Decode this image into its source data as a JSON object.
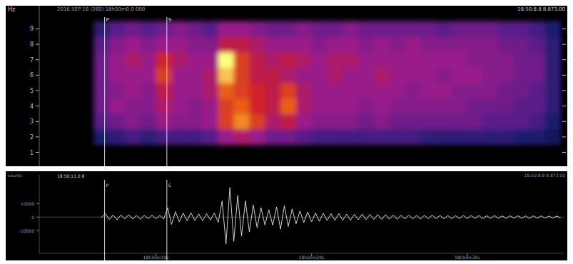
{
  "chart_data": [
    {
      "type": "heatmap",
      "title": "2016 SEP 16 (260) 18h50m0.0 000",
      "subtitle": "18:50:8.8 8.873.00",
      "y_label": "Hz",
      "xlim": [
        2.5,
        36.2
      ],
      "ylim": [
        0.1,
        10.5
      ],
      "yticks": [
        1,
        2,
        3,
        4,
        5,
        6,
        7,
        8,
        9
      ],
      "tick_labels": "y",
      "annotations": [
        {
          "label": "P",
          "x": 6.7
        },
        {
          "label": "S",
          "x": 10.7
        }
      ],
      "x_bins": [
        6,
        7,
        8,
        9,
        10,
        11,
        12,
        13,
        14,
        15,
        16,
        17,
        18,
        19,
        20,
        21,
        22,
        23,
        24,
        25,
        26,
        27,
        28,
        29,
        30,
        31,
        32,
        33,
        34,
        35,
        36
      ],
      "y_bins": [
        1.5,
        2.5,
        3.5,
        4.5,
        5.5,
        6.5,
        7.5,
        8.5,
        9.5
      ],
      "color_range": [
        0,
        1
      ],
      "cells": [
        [
          0.3,
          0.35,
          0.4,
          0.35,
          0.4,
          0.4,
          0.4,
          0.45,
          0.6,
          0.65,
          0.6,
          0.5,
          0.5,
          0.45,
          0.4,
          0.4,
          0.4,
          0.4,
          0.4,
          0.4,
          0.4,
          0.35,
          0.35,
          0.35,
          0.35,
          0.35,
          0.35,
          0.3,
          0.3,
          0.25
        ],
        [
          0.45,
          0.5,
          0.55,
          0.5,
          0.6,
          0.55,
          0.55,
          0.6,
          0.8,
          0.9,
          0.8,
          0.65,
          0.7,
          0.6,
          0.55,
          0.55,
          0.55,
          0.5,
          0.55,
          0.5,
          0.5,
          0.5,
          0.5,
          0.5,
          0.5,
          0.45,
          0.45,
          0.45,
          0.4,
          0.3
        ],
        [
          0.5,
          0.6,
          0.55,
          0.55,
          0.65,
          0.6,
          0.55,
          0.6,
          0.8,
          0.85,
          0.75,
          0.7,
          0.85,
          0.65,
          0.6,
          0.6,
          0.6,
          0.55,
          0.6,
          0.55,
          0.55,
          0.55,
          0.55,
          0.55,
          0.5,
          0.5,
          0.5,
          0.45,
          0.45,
          0.35
        ],
        [
          0.5,
          0.55,
          0.6,
          0.55,
          0.7,
          0.6,
          0.6,
          0.65,
          0.85,
          0.8,
          0.75,
          0.7,
          0.8,
          0.65,
          0.6,
          0.6,
          0.6,
          0.6,
          0.6,
          0.6,
          0.55,
          0.6,
          0.6,
          0.55,
          0.55,
          0.55,
          0.5,
          0.5,
          0.45,
          0.35
        ],
        [
          0.5,
          0.6,
          0.6,
          0.6,
          0.8,
          0.6,
          0.6,
          0.65,
          0.95,
          0.8,
          0.7,
          0.7,
          0.65,
          0.6,
          0.6,
          0.65,
          0.6,
          0.6,
          0.65,
          0.6,
          0.6,
          0.6,
          0.55,
          0.6,
          0.6,
          0.55,
          0.55,
          0.5,
          0.5,
          0.35
        ],
        [
          0.5,
          0.6,
          0.65,
          0.6,
          0.75,
          0.65,
          0.6,
          0.6,
          1.0,
          0.8,
          0.7,
          0.65,
          0.7,
          0.65,
          0.6,
          0.65,
          0.65,
          0.6,
          0.6,
          0.6,
          0.6,
          0.6,
          0.6,
          0.6,
          0.55,
          0.55,
          0.55,
          0.5,
          0.5,
          0.35
        ],
        [
          0.45,
          0.55,
          0.6,
          0.55,
          0.6,
          0.6,
          0.55,
          0.55,
          0.7,
          0.7,
          0.65,
          0.6,
          0.6,
          0.6,
          0.55,
          0.6,
          0.6,
          0.55,
          0.6,
          0.55,
          0.6,
          0.55,
          0.55,
          0.55,
          0.55,
          0.55,
          0.5,
          0.5,
          0.45,
          0.35
        ],
        [
          0.35,
          0.45,
          0.5,
          0.45,
          0.5,
          0.55,
          0.5,
          0.45,
          0.6,
          0.6,
          0.55,
          0.5,
          0.5,
          0.55,
          0.5,
          0.5,
          0.55,
          0.5,
          0.5,
          0.5,
          0.5,
          0.5,
          0.45,
          0.5,
          0.5,
          0.5,
          0.45,
          0.45,
          0.4,
          0.3
        ]
      ]
    },
    {
      "type": "line",
      "title": "18:50:11.0 8",
      "subtitle": "18:50:8.8 8.873.00",
      "y_label": "counts",
      "color": "#e8e8e8",
      "xlim": [
        2.5,
        36.2
      ],
      "ylim": [
        -27000,
        31500
      ],
      "xticks": [
        {
          "value": 10,
          "label": "18h50m10s"
        },
        {
          "value": 20,
          "label": "18h50m20s"
        },
        {
          "value": 30,
          "label": "18h50m30s"
        }
      ],
      "yticks": [
        10000,
        0,
        -10000
      ],
      "annotations": [
        {
          "label": "P",
          "x": 6.7
        },
        {
          "label": "S",
          "x": 10.7
        }
      ],
      "x": [
        6.5,
        6.75,
        7.0,
        7.25,
        7.5,
        7.75,
        8.0,
        8.25,
        8.5,
        8.75,
        9.0,
        9.25,
        9.5,
        9.75,
        10.0,
        10.25,
        10.5,
        10.75,
        11.0,
        11.25,
        11.5,
        11.75,
        12.0,
        12.25,
        12.5,
        12.75,
        13.0,
        13.25,
        13.5,
        13.75,
        14.0,
        14.25,
        14.5,
        14.75,
        15.0,
        15.25,
        15.5,
        15.75,
        16.0,
        16.25,
        16.5,
        16.75,
        17.0,
        17.25,
        17.5,
        17.75,
        18.0,
        18.25,
        18.5,
        18.75,
        19.0,
        19.25,
        19.5,
        19.75,
        20.0,
        20.25,
        20.5,
        20.75,
        21.0,
        21.25,
        21.5,
        21.75,
        22.0,
        22.25,
        22.5,
        22.75,
        23.0,
        23.25,
        23.5,
        23.75,
        24.0,
        24.25,
        24.5,
        24.75,
        25.0,
        25.25,
        25.5,
        25.75,
        26.0,
        26.25,
        26.5,
        26.75,
        27.0,
        27.25,
        27.5,
        27.75,
        28.0,
        28.25,
        28.5,
        28.75,
        29.0,
        29.25,
        29.5,
        29.75,
        30.0,
        30.25,
        30.5,
        30.75,
        31.0,
        31.25,
        31.5,
        31.75,
        32.0,
        32.25,
        32.5,
        32.75,
        33.0,
        33.25,
        33.5,
        33.75,
        34.0,
        34.25,
        34.5,
        34.75,
        35.0,
        35.25,
        35.5,
        35.75,
        36.0
      ],
      "values": [
        0,
        2500,
        -1800,
        1500,
        -2000,
        1600,
        -1400,
        1800,
        -1500,
        1300,
        -1700,
        1400,
        -1200,
        1500,
        -1300,
        1200,
        -1400,
        7000,
        -5500,
        4000,
        -3500,
        3000,
        -2800,
        3200,
        -2600,
        2400,
        -2800,
        2500,
        -2200,
        3000,
        -4000,
        12000,
        -20000,
        22000,
        -18000,
        16000,
        -14000,
        12000,
        -11000,
        9000,
        -8000,
        7000,
        -6000,
        5500,
        -6000,
        7500,
        -9000,
        8500,
        -7000,
        6000,
        -5000,
        4500,
        -4000,
        3800,
        -3500,
        3000,
        -3200,
        2800,
        -2600,
        2500,
        -2400,
        2600,
        -2300,
        2200,
        -2400,
        2100,
        -2000,
        2200,
        -1900,
        2000,
        -1800,
        1900,
        -1700,
        1800,
        -1600,
        1500,
        -1700,
        1400,
        -1500,
        1600,
        -1400,
        1300,
        -1500,
        1400,
        -1300,
        1500,
        -1200,
        1300,
        -1400,
        1200,
        -1300,
        1100,
        -1200,
        1300,
        -1100,
        1200,
        -1000,
        1100,
        -1200,
        1000,
        -1100,
        1200,
        -1000,
        900,
        -1100,
        1000,
        -900,
        1000,
        -900,
        800,
        -1000,
        900,
        -800,
        900,
        -800,
        700,
        -800,
        700,
        -600
      ]
    }
  ]
}
